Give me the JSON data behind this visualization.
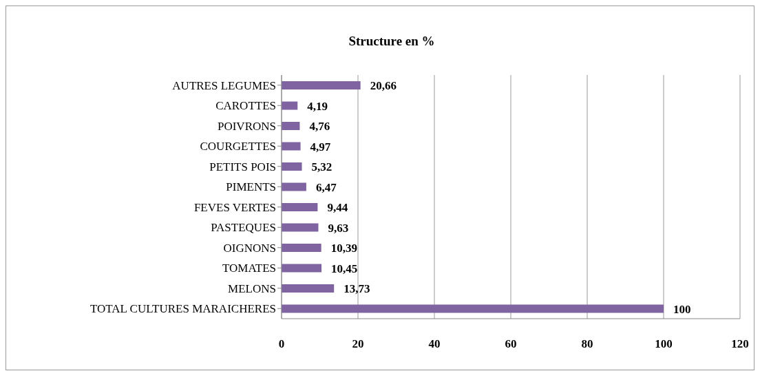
{
  "chart_data": {
    "type": "bar",
    "orientation": "horizontal",
    "title": "Structure en %",
    "categories": [
      "AUTRES LEGUMES",
      "CAROTTES",
      "POIVRONS",
      "COURGETTES",
      "PETITS POIS",
      "PIMENTS",
      "FEVES VERTES",
      "PASTEQUES",
      "OIGNONS",
      "TOMATES",
      "MELONS",
      "TOTAL CULTURES MARAICHERES"
    ],
    "values": [
      20.66,
      4.19,
      4.76,
      4.97,
      5.32,
      6.47,
      9.44,
      9.63,
      10.39,
      10.45,
      13.73,
      100
    ],
    "value_labels": [
      "20,66",
      "4,19",
      "4,76",
      "4,97",
      "5,32",
      "6,47",
      "9,44",
      "9,63",
      "10,39",
      "10,45",
      "13,73",
      "100"
    ],
    "color": "#8064a2",
    "xlim": [
      0,
      120
    ],
    "xticks": [
      0,
      20,
      40,
      60,
      80,
      100,
      120
    ],
    "grid": "x"
  }
}
